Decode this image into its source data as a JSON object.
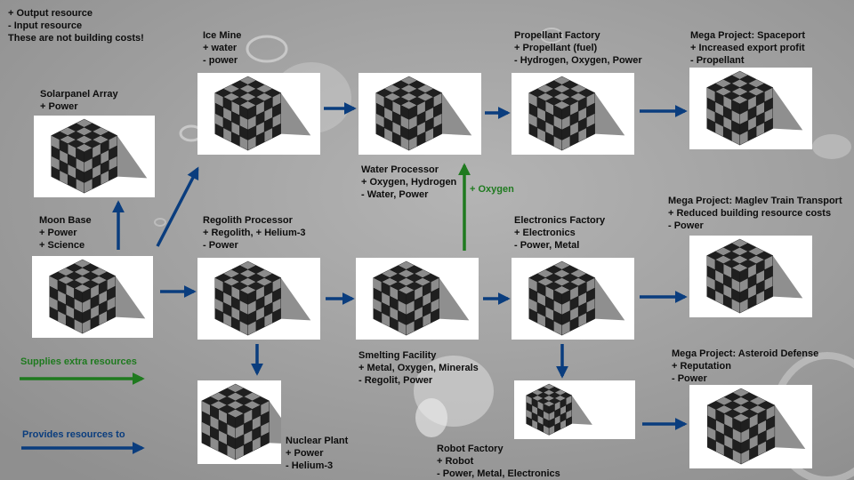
{
  "colors": {
    "background": "#a6a6a6",
    "blue_arrow": "#0a3d7e",
    "green_arrow": "#1f7a1f",
    "label_text": "#0d0d0d",
    "tile_bg": "#ffffff",
    "cube_dark": "#1f1f1f",
    "cube_light": "#8c8c8c"
  },
  "key": {
    "lines": [
      "+ Output resource",
      "- Input resource",
      "These are not building costs!"
    ]
  },
  "legend": {
    "green_label": "Supplies extra resources",
    "blue_label": "Provides resources to"
  },
  "buildings": {
    "solar": {
      "title": "Solarpanel Array",
      "lines": [
        "+ Power"
      ]
    },
    "moon_base": {
      "title": "Moon Base",
      "lines": [
        "+ Power",
        "+ Science"
      ]
    },
    "ice_mine": {
      "title": "Ice Mine",
      "lines": [
        "+ water",
        "- power"
      ]
    },
    "regolith": {
      "title": "Regolith Processor",
      "lines": [
        "+ Regolith, + Helium-3",
        "- Power"
      ]
    },
    "nuclear": {
      "title": "Nuclear Plant",
      "lines": [
        "+ Power",
        "- Helium-3"
      ]
    },
    "water": {
      "title": "Water Processor",
      "lines": [
        "+ Oxygen, Hydrogen",
        "- Water, Power"
      ]
    },
    "smelting": {
      "title": "Smelting Facility",
      "lines": [
        "+ Metal, Oxygen, Minerals",
        "- Regolit, Power"
      ]
    },
    "propellant": {
      "title": "Propellant Factory",
      "lines": [
        "+ Propellant (fuel)",
        "- Hydrogen, Oxygen, Power"
      ]
    },
    "electronics": {
      "title": "Electronics Factory",
      "lines": [
        "+ Electronics",
        "- Power, Metal"
      ]
    },
    "robot": {
      "title": "Robot Factory",
      "lines": [
        "+ Robot",
        "- Power, Metal, Electronics"
      ]
    },
    "spaceport": {
      "title": "Mega Project: Spaceport",
      "lines": [
        "+ Increased export profit",
        "- Propellant"
      ]
    },
    "maglev": {
      "title": "Mega Project: Maglev Train Transport",
      "lines": [
        "+ Reduced building resource costs",
        "- Power"
      ]
    },
    "asteroid": {
      "title": "Mega Project: Asteroid Defense",
      "lines": [
        "+ Reputation",
        "- Power"
      ]
    }
  },
  "oxygen_label": "+ Oxygen"
}
